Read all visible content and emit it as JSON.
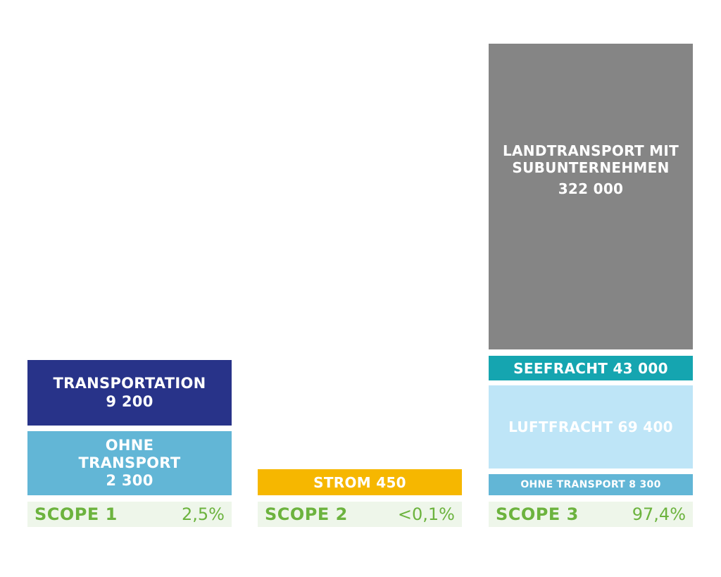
{
  "chart_data": {
    "type": "bar",
    "stacked": true,
    "categories": [
      "SCOPE 1",
      "SCOPE 2",
      "SCOPE 3"
    ],
    "shares": [
      "2,5%",
      "<0,1%",
      "97,4%"
    ],
    "segments": [
      {
        "scope": "SCOPE 1",
        "label": "OHNE\nTRANSPORT",
        "value_label": "2 300",
        "value": 2300,
        "color": "#62b6d6"
      },
      {
        "scope": "SCOPE 1",
        "label": "TRANSPORTATION",
        "value_label": "9 200",
        "value": 9200,
        "color": "#283389"
      },
      {
        "scope": "SCOPE 2",
        "label": "STROM 450",
        "value_label": "",
        "value": 450,
        "color": "#f6b700"
      },
      {
        "scope": "SCOPE 3",
        "label": "OHNE TRANSPORT 8 300",
        "value_label": "",
        "value": 8300,
        "color": "#62b6d6"
      },
      {
        "scope": "SCOPE 3",
        "label": "LUFTFRACHT 69 400",
        "value_label": "",
        "value": 69400,
        "color": "#bee5f7"
      },
      {
        "scope": "SCOPE 3",
        "label": "SEEFRACHT 43 000",
        "value_label": "",
        "value": 43000,
        "color": "#15a5b0"
      },
      {
        "scope": "SCOPE 3",
        "label": "LANDTRANSPORT MIT\nSUBUNTERNEHMEN",
        "value_label": "322 000",
        "value": 322000,
        "color": "#858585"
      }
    ],
    "footer_background": "#eef6ea",
    "footer_text_color": "#6cb33e"
  }
}
